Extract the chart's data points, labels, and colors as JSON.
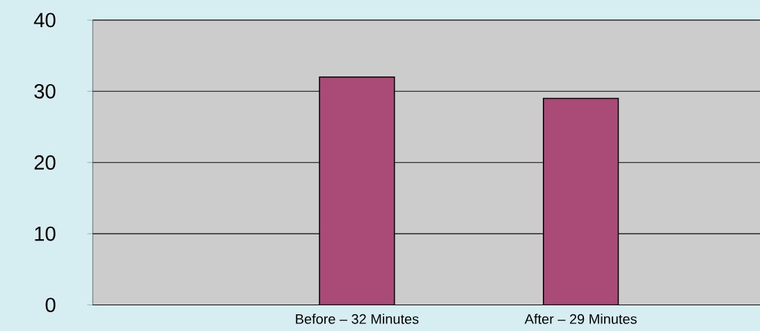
{
  "chart_data": {
    "type": "bar",
    "categories": [
      "Before – 32 Minutes",
      "After – 29 Minutes"
    ],
    "values": [
      32,
      29
    ],
    "color": "#aa4a76",
    "ylim": [
      0,
      40
    ],
    "yticks": [
      0,
      10,
      20,
      30,
      40
    ],
    "grid": "y"
  }
}
